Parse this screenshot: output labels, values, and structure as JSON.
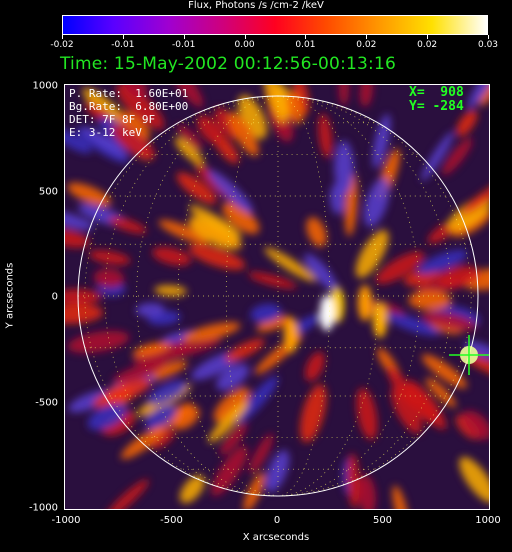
{
  "colorbar": {
    "title": "Flux, Photons /s /cm-2 /keV",
    "ticks": [
      "-0.02",
      "-0.01",
      "-0.01",
      "0.00",
      "0.01",
      "0.02",
      "0.02",
      "0.03"
    ]
  },
  "time_label": "Time: 15-May-2002 00:12:56-00:13:16",
  "overlay": {
    "p_rate": "P. Rate:  1.60E+01",
    "bg_rate": "Bg.Rate:  6.80E+00",
    "det": "DET: 7F 8F 9F",
    "energy": "E: 3-12 keV",
    "x_pos": "X=  908",
    "y_pos": "Y= -284"
  },
  "axes": {
    "xlabel": "X arcseconds",
    "ylabel": "Y arcseconds",
    "xticks": [
      "-1000",
      "-500",
      "0",
      "500",
      "1000"
    ],
    "yticks": [
      "1000",
      "500",
      "0",
      "-500",
      "-1000"
    ]
  },
  "colors": {
    "time": "#22e622",
    "marker": "#22ff22",
    "background": "#2a0f3e"
  }
}
